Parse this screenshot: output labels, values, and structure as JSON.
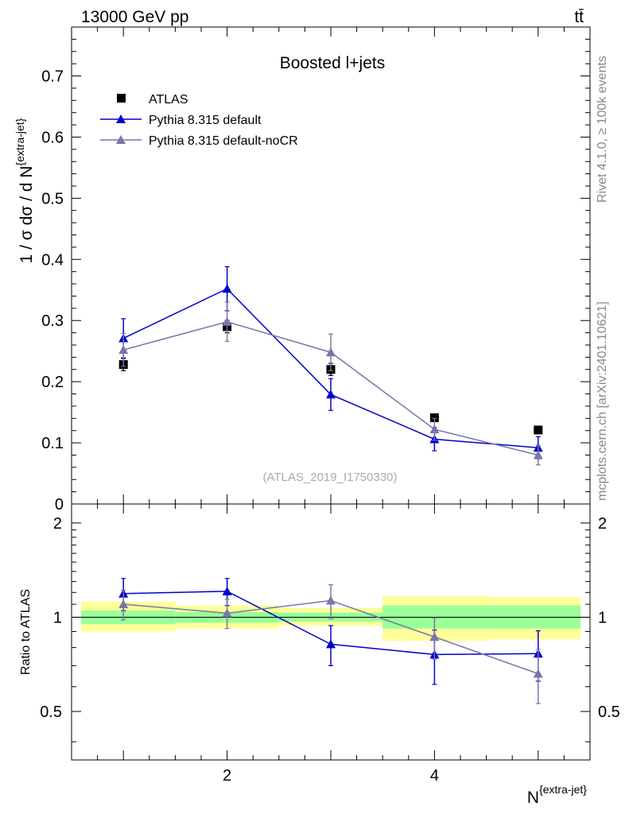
{
  "header": {
    "energy_label": "13000 GeV pp",
    "process_label": "tt̄"
  },
  "side_labels": {
    "rivet": "Rivet 4.1.0, ≥ 100k events",
    "mcplots": "mcplots.cern.ch [arXiv:2401.10621]"
  },
  "chart_data": [
    {
      "type": "line",
      "title": "Boosted l+jets",
      "watermark": "(ATLAS_2019_I1750330)",
      "ylabel": "1 / σ dσ / d N{extra-jet}",
      "xlabel": "N{extra-jet}",
      "xlim": [
        0.5,
        5.5
      ],
      "ylim": [
        0,
        0.78
      ],
      "yticks": [
        0,
        0.1,
        0.2,
        0.3,
        0.4,
        0.5,
        0.6,
        0.7
      ],
      "ytick_labels": [
        "0",
        "0.1",
        "0.2",
        "0.3",
        "0.4",
        "0.5",
        "0.6",
        "0.7"
      ],
      "legend_position": "top-left",
      "x": [
        1,
        2,
        3,
        4,
        5
      ],
      "series": [
        {
          "name": "ATLAS",
          "marker": "square",
          "color": "#000000",
          "values": [
            0.228,
            0.29,
            0.22,
            0.141,
            0.121
          ],
          "errors": [
            0.01,
            0.01,
            0.01,
            0.006,
            0.005
          ]
        },
        {
          "name": "Pythia 8.315 default",
          "marker": "triangle",
          "color": "#0000cc",
          "values": [
            0.271,
            0.352,
            0.179,
            0.106,
            0.092
          ],
          "errors": [
            0.032,
            0.036,
            0.026,
            0.019,
            0.018
          ]
        },
        {
          "name": "Pythia 8.315 default-noCR",
          "marker": "triangle",
          "color": "#7777aa",
          "values": [
            0.252,
            0.298,
            0.248,
            0.122,
            0.08
          ],
          "errors": [
            0.027,
            0.032,
            0.03,
            0.018,
            0.016
          ]
        }
      ]
    },
    {
      "type": "line",
      "ylabel": "Ratio to ATLAS",
      "xlabel": "N{extra-jet}",
      "xlim": [
        0.5,
        5.5
      ],
      "ylim": [
        0.35,
        2.3
      ],
      "yscale": "log",
      "yticks": [
        0.5,
        1,
        2
      ],
      "ytick_labels": [
        "0.5",
        "1",
        "2"
      ],
      "xticks": [
        2,
        4
      ],
      "xtick_labels": [
        "2",
        "4"
      ],
      "reference_line": 1,
      "uncertainty_bands": [
        {
          "x": [
            0.5,
            1.5
          ],
          "inner": [
            0.95,
            1.05
          ],
          "outer": [
            0.9,
            1.12
          ]
        },
        {
          "x": [
            1.5,
            2.5
          ],
          "inner": [
            0.96,
            1.04
          ],
          "outer": [
            0.92,
            1.09
          ]
        },
        {
          "x": [
            2.5,
            3.5
          ],
          "inner": [
            0.97,
            1.035
          ],
          "outer": [
            0.94,
            1.07
          ]
        },
        {
          "x": [
            3.5,
            4.5
          ],
          "inner": [
            0.92,
            1.09
          ],
          "outer": [
            0.84,
            1.17
          ]
        },
        {
          "x": [
            4.5,
            5.5
          ],
          "inner": [
            0.92,
            1.09
          ],
          "outer": [
            0.85,
            1.16
          ]
        }
      ],
      "x": [
        1,
        2,
        3,
        4,
        5
      ],
      "series": [
        {
          "name": "Pythia 8.315 default",
          "color": "#0000cc",
          "values": [
            1.19,
            1.21,
            0.82,
            0.76,
            0.765
          ],
          "errors": [
            0.14,
            0.12,
            0.12,
            0.15,
            0.14
          ]
        },
        {
          "name": "Pythia 8.315 default-noCR",
          "color": "#7777aa",
          "values": [
            1.1,
            1.03,
            1.13,
            0.865,
            0.66
          ],
          "errors": [
            0.12,
            0.11,
            0.14,
            0.13,
            0.13
          ]
        }
      ]
    }
  ]
}
